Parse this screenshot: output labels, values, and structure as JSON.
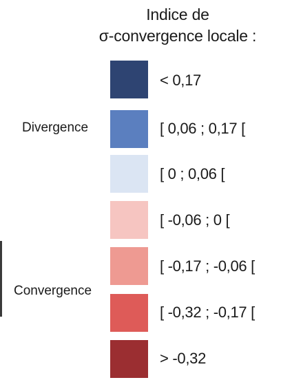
{
  "legend": {
    "title_line1": "Indice de",
    "title_line2": "σ-convergence locale :",
    "items": [
      {
        "label": "< 0,17",
        "color": "#2e4472"
      },
      {
        "label": "[ 0,06 ; 0,17 [",
        "color": "#5b7fbf"
      },
      {
        "label": "[ 0 ; 0,06 [",
        "color": "#dbe5f3"
      },
      {
        "label": "[ -0,06 ; 0 [",
        "color": "#f6c5c1"
      },
      {
        "label": "[ -0,17 ; -0,06 [",
        "color": "#ee9a92"
      },
      {
        "label": "[ -0,32 ; -0,17 [",
        "color": "#de5b58"
      },
      {
        "label": "> -0,32",
        "color": "#9b2e31"
      }
    ],
    "groups": {
      "divergence": "Divergence",
      "convergence": "Convergence"
    }
  }
}
